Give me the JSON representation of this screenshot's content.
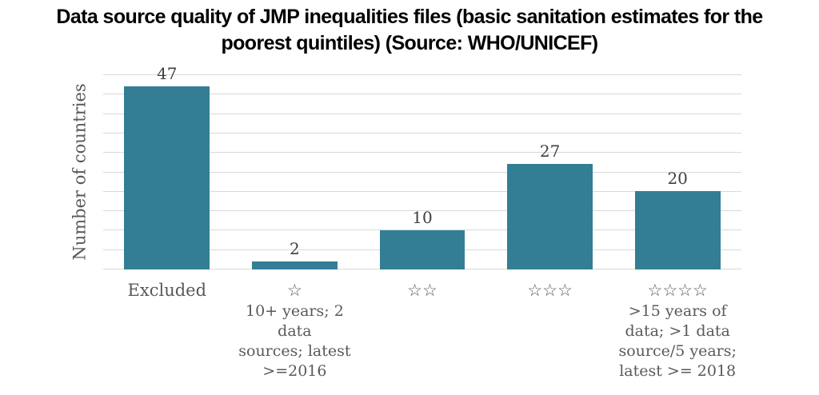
{
  "title_lines": [
    "Data source quality of JMP inequalities files (basic sanitation estimates for the",
    "poorest quintiles) (Source: WHO/UNICEF)"
  ],
  "chart_data": {
    "type": "bar",
    "title": "Data source quality of JMP inequalities files (basic sanitation estimates for the poorest quintiles) (Source: WHO/UNICEF)",
    "xlabel": "",
    "ylabel": "Number of countries",
    "ylim": [
      0,
      50
    ],
    "gridline_step": 5,
    "grid": true,
    "legend": "none",
    "y_tick_labels_visible": false,
    "categories": [
      "Excluded",
      "☆",
      "☆☆",
      "☆☆☆",
      "☆☆☆☆"
    ],
    "values": [
      47,
      2,
      10,
      27,
      20
    ],
    "category_captions": [
      [],
      [
        "10+ years; 2 data",
        "sources; latest",
        ">=2016"
      ],
      [],
      [],
      [
        ">15 years of",
        "data; >1 data",
        "source/5 years;",
        "latest >= 2018"
      ]
    ],
    "colors": {
      "bar": "#337e95",
      "title_text": "#000000",
      "axis_text": "#595959",
      "value_label_text": "#3f3f3f",
      "gridline": "#d9d9d9",
      "background": "#ffffff"
    }
  }
}
